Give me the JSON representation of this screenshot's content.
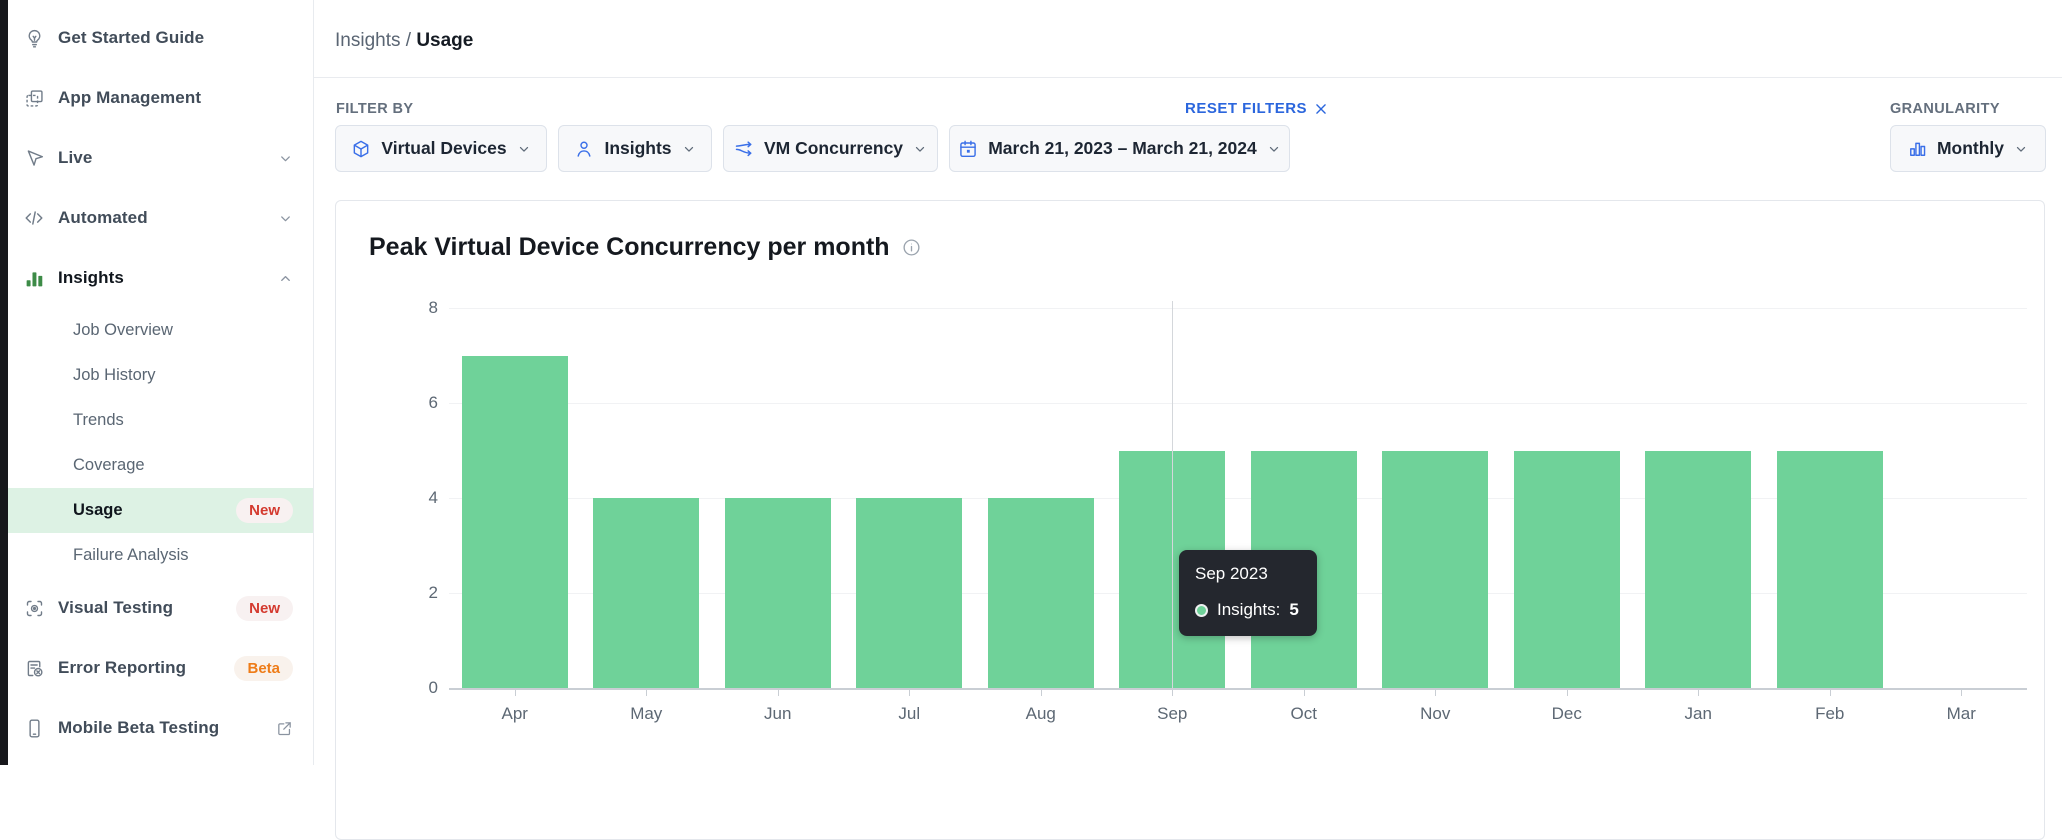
{
  "sidebar": {
    "items": {
      "get_started": {
        "label": "Get Started Guide"
      },
      "app_management": {
        "label": "App Management"
      },
      "live": {
        "label": "Live"
      },
      "automated": {
        "label": "Automated"
      },
      "insights": {
        "label": "Insights"
      },
      "visual_testing": {
        "label": "Visual Testing",
        "badge": "New"
      },
      "error_reporting": {
        "label": "Error Reporting",
        "badge": "Beta"
      },
      "mobile_beta": {
        "label": "Mobile Beta Testing"
      }
    },
    "insights_sub": {
      "job_overview": {
        "label": "Job Overview"
      },
      "job_history": {
        "label": "Job History"
      },
      "trends": {
        "label": "Trends"
      },
      "coverage": {
        "label": "Coverage"
      },
      "usage": {
        "label": "Usage",
        "badge": "New",
        "selected": true
      },
      "failure_analysis": {
        "label": "Failure Analysis"
      }
    }
  },
  "breadcrumb": {
    "section": "Insights",
    "separator": "/",
    "page": "Usage"
  },
  "filters": {
    "label": "FILTER BY",
    "reset_label": "RESET FILTERS",
    "device_type": "Virtual Devices",
    "product": "Insights",
    "metric": "VM Concurrency",
    "date_range": "March 21, 2023 – March 21, 2024"
  },
  "granularity": {
    "label": "GRANULARITY",
    "value": "Monthly"
  },
  "chart_data": {
    "type": "bar",
    "title": "Peak Virtual Device Concurrency per month",
    "categories": [
      "Apr",
      "May",
      "Jun",
      "Jul",
      "Aug",
      "Sep",
      "Oct",
      "Nov",
      "Dec",
      "Jan",
      "Feb",
      "Mar"
    ],
    "values": [
      7,
      4,
      4,
      4,
      4,
      5,
      5,
      5,
      5,
      5,
      5,
      0
    ],
    "series_name": "Insights",
    "xlabel": "",
    "ylabel": "",
    "ylim": [
      0,
      8
    ],
    "yticks": [
      0,
      2,
      4,
      6,
      8
    ],
    "grid": true,
    "bar_color": "#6fd299",
    "hovered_category": "Sep"
  },
  "tooltip": {
    "title": "Sep 2023",
    "series_label": "Insights:",
    "value": "5"
  },
  "colors": {
    "bar_green": "#6fd299",
    "sidebar_icon_green": "#3d8b47",
    "selected_row_bg": "#ddf2e4",
    "accent_blue": "#3a6fe8",
    "link_blue": "#2b66dd",
    "badge_new_red": "#d43a2f",
    "badge_beta_orange": "#ee7c18",
    "tooltip_bg": "#24272e"
  }
}
